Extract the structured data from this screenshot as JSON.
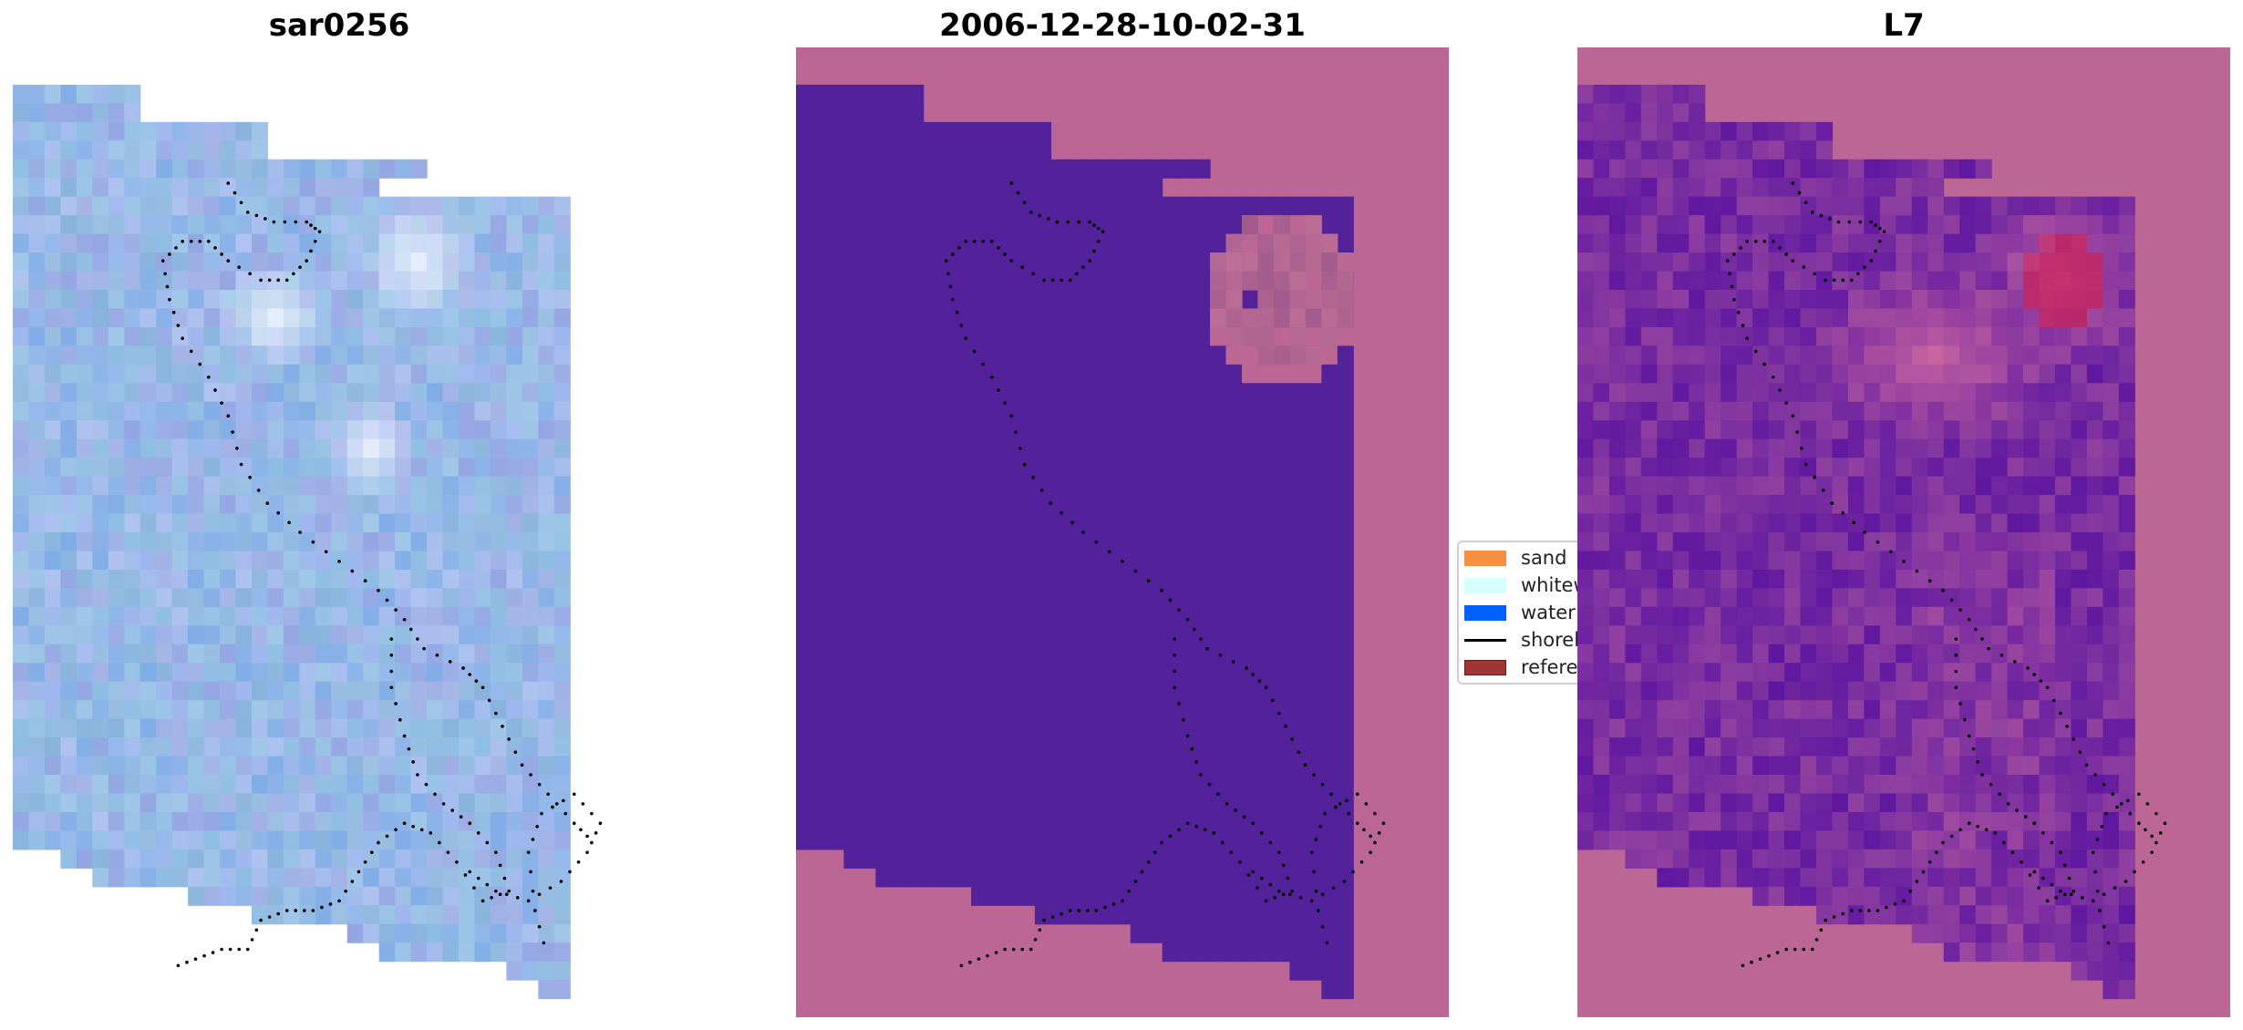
{
  "panels": [
    {
      "id": "satellite",
      "title": "sar0256",
      "description_icon": "satellite-rgb-image"
    },
    {
      "id": "classification",
      "title": "2006-12-28-10-02-31",
      "description_icon": "classification-map"
    },
    {
      "id": "sensor",
      "title": "L7",
      "description_icon": "index-map"
    }
  ],
  "legend": {
    "items": [
      {
        "label": "sand",
        "color": "#f78f43",
        "kind": "patch"
      },
      {
        "label": "whitew",
        "color": "#d6fefe",
        "kind": "patch"
      },
      {
        "label": "water",
        "color": "#0061ff",
        "kind": "patch"
      },
      {
        "label": "shorel",
        "color": "#000000",
        "kind": "line"
      },
      {
        "label": "referen",
        "color": "#a03535",
        "kind": "patch"
      }
    ]
  },
  "colors": {
    "satellite_base": "#8fb0e6",
    "satellite_bright": "#f4f6ff",
    "classification_water": "#53229a",
    "classification_overlay": "#bc6696",
    "sensor_dark": "#5a12a0",
    "sensor_hot": "#c8144a",
    "shoreline": "#000000"
  }
}
